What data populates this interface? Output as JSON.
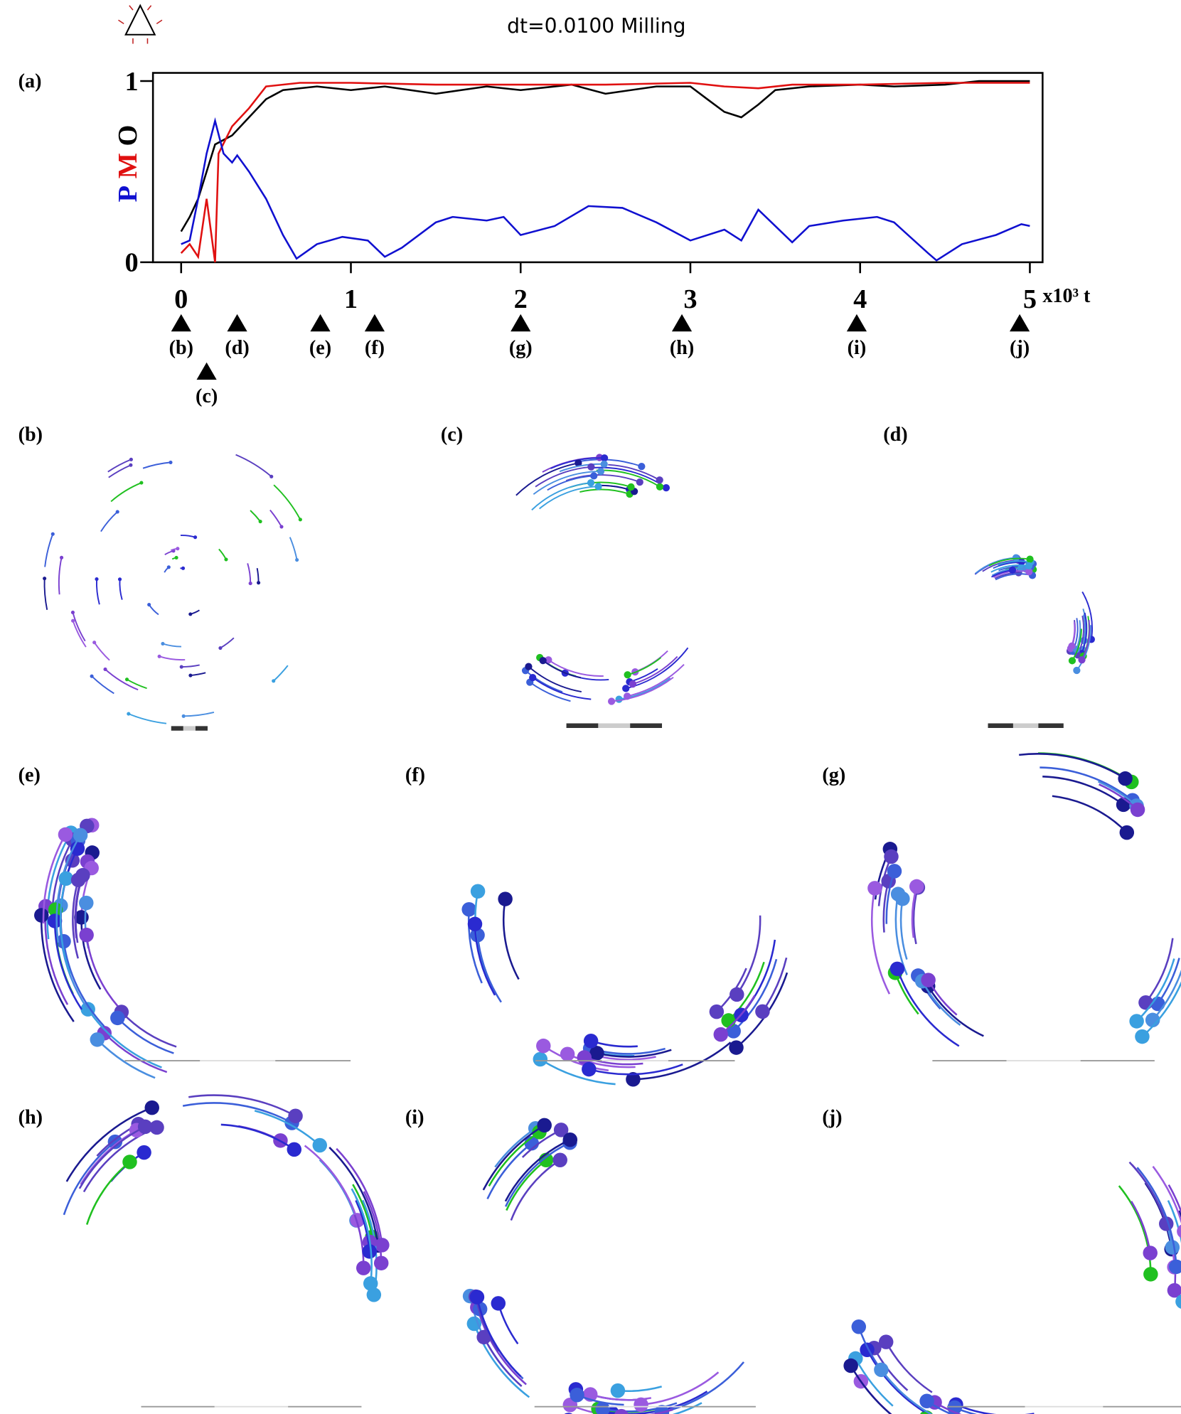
{
  "chart_data": {
    "type": "line",
    "title": "dt=0.0100 Milling",
    "panel_label": "(a)",
    "xlabel": "x10³ t",
    "xlim": [
      -0.166,
      5.075
    ],
    "ylim": [
      0,
      1.045
    ],
    "xticks": [
      0,
      1,
      2,
      3,
      4,
      5
    ],
    "yticks": [
      0,
      1
    ],
    "series": [
      {
        "name": "P",
        "color": "#1010d0",
        "x": [
          0,
          0.05,
          0.1,
          0.15,
          0.2,
          0.25,
          0.3,
          0.33,
          0.4,
          0.5,
          0.6,
          0.68,
          0.8,
          0.95,
          1.1,
          1.2,
          1.3,
          1.5,
          1.6,
          1.8,
          1.9,
          2.0,
          2.2,
          2.4,
          2.6,
          2.8,
          3.0,
          3.2,
          3.3,
          3.4,
          3.6,
          3.7,
          3.9,
          4.1,
          4.2,
          4.4,
          4.45,
          4.6,
          4.8,
          4.95,
          5.0
        ],
        "values": [
          0.1,
          0.12,
          0.35,
          0.6,
          0.78,
          0.6,
          0.55,
          0.59,
          0.5,
          0.35,
          0.15,
          0.02,
          0.1,
          0.14,
          0.12,
          0.03,
          0.08,
          0.22,
          0.25,
          0.23,
          0.25,
          0.15,
          0.2,
          0.31,
          0.3,
          0.22,
          0.12,
          0.18,
          0.12,
          0.29,
          0.11,
          0.2,
          0.23,
          0.25,
          0.22,
          0.05,
          0.01,
          0.1,
          0.15,
          0.21,
          0.2
        ]
      },
      {
        "name": "M",
        "color": "#e01010",
        "x": [
          0,
          0.05,
          0.1,
          0.15,
          0.2,
          0.22,
          0.3,
          0.4,
          0.5,
          0.7,
          1.0,
          1.5,
          2.0,
          2.5,
          3.0,
          3.2,
          3.4,
          3.6,
          4.0,
          4.5,
          5.0
        ],
        "values": [
          0.05,
          0.1,
          0.03,
          0.35,
          0.0,
          0.6,
          0.75,
          0.85,
          0.97,
          0.99,
          0.99,
          0.98,
          0.98,
          0.98,
          0.99,
          0.97,
          0.96,
          0.98,
          0.98,
          0.99,
          0.99
        ]
      },
      {
        "name": "O",
        "color": "#000000",
        "x": [
          0,
          0.05,
          0.1,
          0.15,
          0.2,
          0.3,
          0.4,
          0.5,
          0.6,
          0.8,
          1.0,
          1.2,
          1.5,
          1.8,
          2.0,
          2.3,
          2.5,
          2.8,
          3.0,
          3.1,
          3.2,
          3.3,
          3.4,
          3.5,
          3.7,
          4.0,
          4.2,
          4.5,
          4.7,
          5.0
        ],
        "values": [
          0.17,
          0.25,
          0.35,
          0.5,
          0.65,
          0.7,
          0.8,
          0.9,
          0.95,
          0.97,
          0.95,
          0.97,
          0.93,
          0.97,
          0.95,
          0.98,
          0.93,
          0.97,
          0.97,
          0.9,
          0.83,
          0.8,
          0.87,
          0.95,
          0.97,
          0.98,
          0.97,
          0.98,
          1.0,
          1.0
        ]
      }
    ],
    "markers": {
      "labels": [
        "(b)",
        "(c)",
        "(d)",
        "(e)",
        "(f)",
        "(g)",
        "(h)",
        "(i)",
        "(j)"
      ],
      "x": [
        0,
        0.15,
        0.33,
        0.82,
        1.14,
        2.0,
        2.95,
        3.98,
        4.94
      ]
    }
  },
  "panels": {
    "labels": [
      "(b)",
      "(c)",
      "(d)",
      "(e)",
      "(f)",
      "(g)",
      "(h)",
      "(i)",
      "(j)"
    ]
  }
}
